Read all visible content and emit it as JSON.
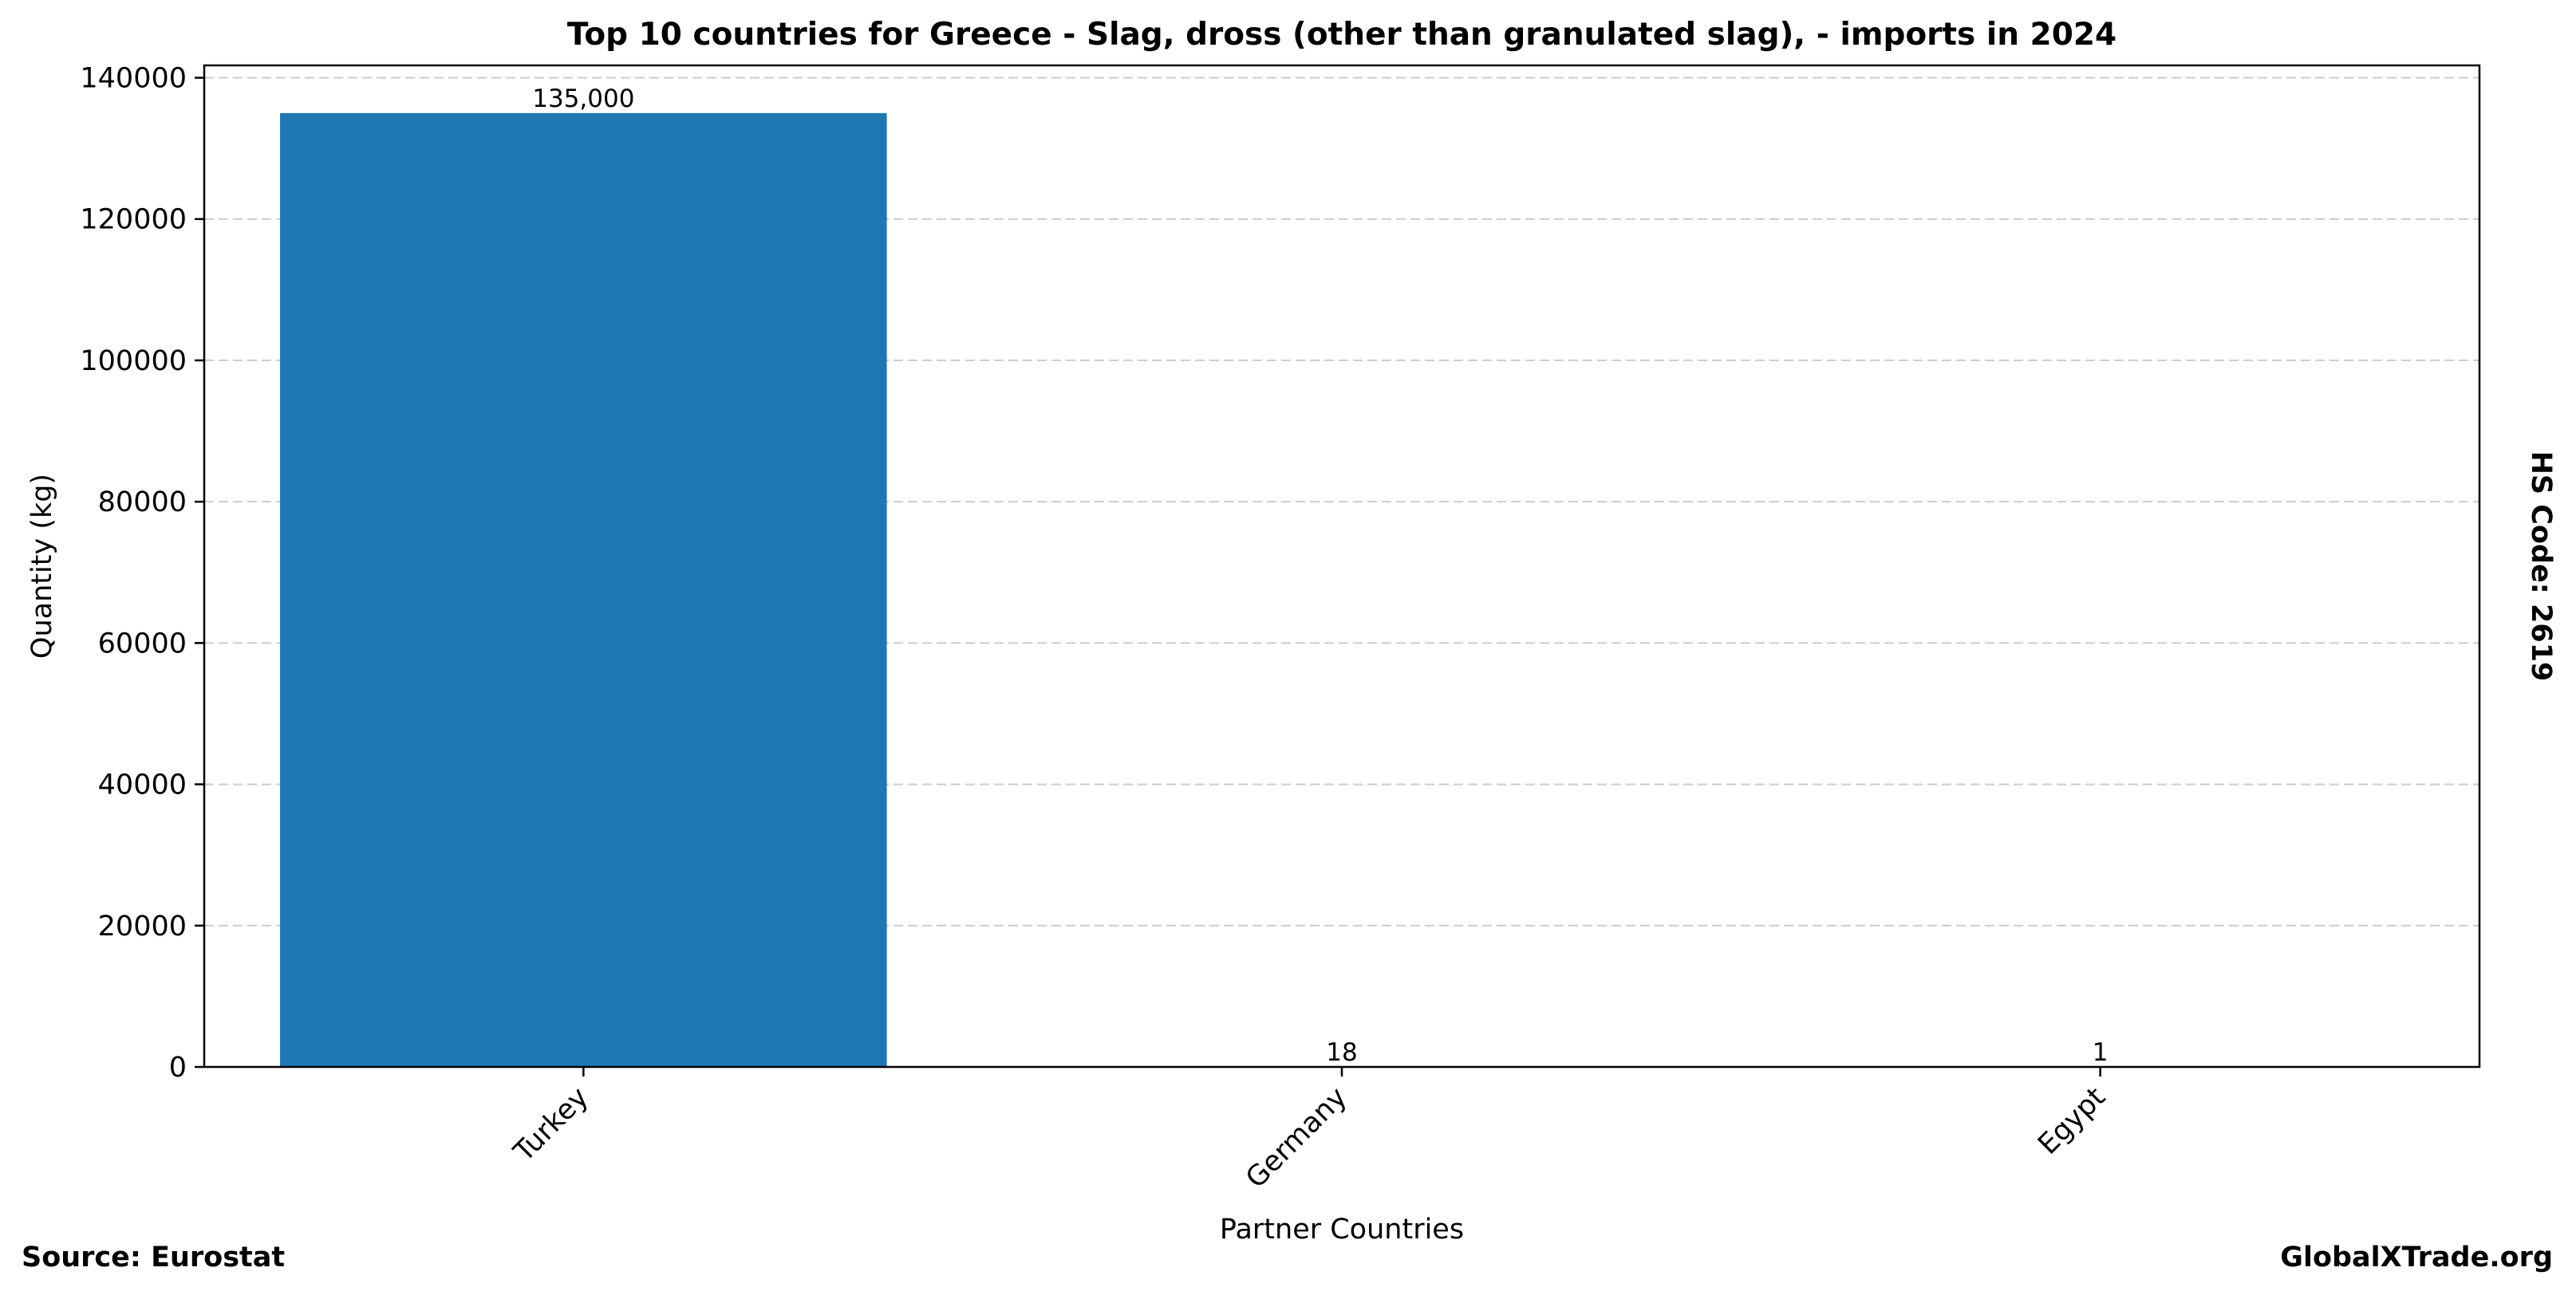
{
  "chart_data": {
    "type": "bar",
    "title": "Top 10 countries for Greece - Slag, dross (other than granulated slag), - imports in 2024",
    "xlabel": "Partner Countries",
    "ylabel": "Quantity (kg)",
    "categories": [
      "Turkey",
      "Germany",
      "Egypt"
    ],
    "values": [
      135000,
      18,
      1
    ],
    "value_labels": [
      "135,000",
      "18",
      "1"
    ],
    "ylim": [
      0,
      140000
    ],
    "yticks": [
      0,
      20000,
      40000,
      60000,
      80000,
      100000,
      120000,
      140000
    ],
    "ytick_labels": [
      "0",
      "20000",
      "40000",
      "60000",
      "80000",
      "100000",
      "120000",
      "140000"
    ],
    "bar_color": "#1f77b4",
    "grid": "y-dashed",
    "legend": "none"
  },
  "side_note": "HS Code: 2619",
  "footer": {
    "source": "Source: Eurostat",
    "brand": "GlobalXTrade.org"
  }
}
